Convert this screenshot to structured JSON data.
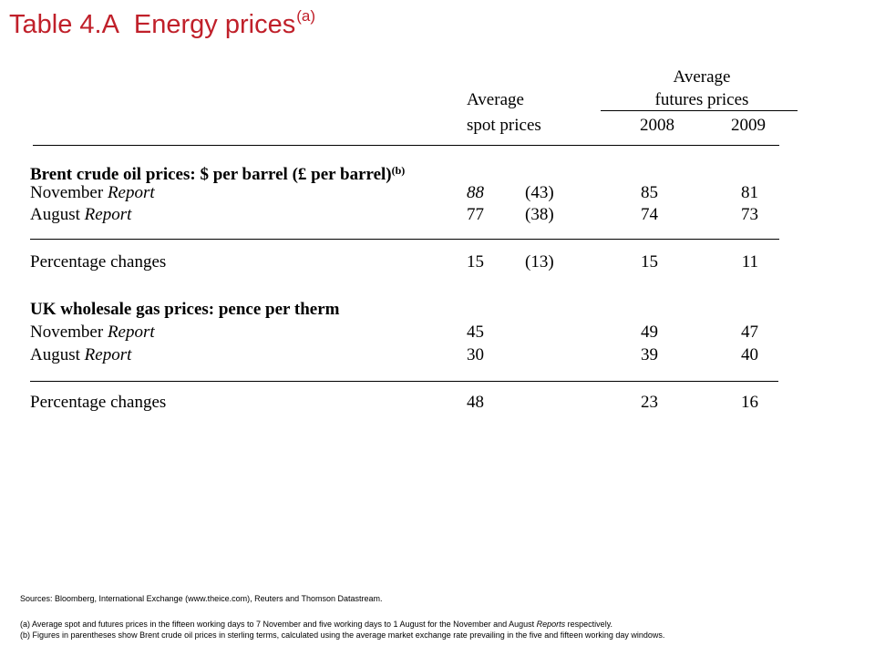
{
  "title": {
    "number": "Table 4.A",
    "text": "Energy prices",
    "note_ref": "(a)"
  },
  "header": {
    "spot_line1": "Average",
    "spot_line2": "spot prices",
    "futures_line1": "Average",
    "futures_line2": "futures prices",
    "year1": "2008",
    "year2": "2009"
  },
  "section1": {
    "heading": "Brent crude oil prices:  $ per barrel (£ per barrel)",
    "heading_ref": "(b)",
    "rows": [
      {
        "label": "November",
        "label_italic": "Report",
        "spot": "88",
        "sterling": "(43)",
        "f2008": "85",
        "f2009": "81"
      },
      {
        "label": "August",
        "label_italic": "Report",
        "spot": "77",
        "sterling": "(38)",
        "f2008": "74",
        "f2009": "73"
      }
    ],
    "change": {
      "label": "Percentage changes",
      "spot": "15",
      "sterling": "(13)",
      "f2008": "15",
      "f2009": "11"
    }
  },
  "section2": {
    "heading": "UK wholesale gas prices:  pence per therm",
    "rows": [
      {
        "label": "November",
        "label_italic": "Report",
        "spot": "45",
        "f2008": "49",
        "f2009": "47"
      },
      {
        "label": "August",
        "label_italic": "Report",
        "spot": "30",
        "f2008": "39",
        "f2009": "40"
      }
    ],
    "change": {
      "label": "Percentage changes",
      "spot": "48",
      "f2008": "23",
      "f2009": "16"
    }
  },
  "sources": "Sources:  Bloomberg, International Exchange (www.theice.com), Reuters and Thomson Datastream.",
  "footnotes": {
    "a_pre": "(a)  Average spot and futures prices in the fifteen working days to 7 November and five working days to 1 August for the November and August ",
    "a_italic": "Reports",
    "a_post": " respectively.",
    "b": "(b)  Figures in parentheses show Brent crude oil prices in sterling terms, calculated using the average market exchange rate prevailing in the five and fifteen working day windows."
  },
  "colors": {
    "title": "#c0202a"
  }
}
